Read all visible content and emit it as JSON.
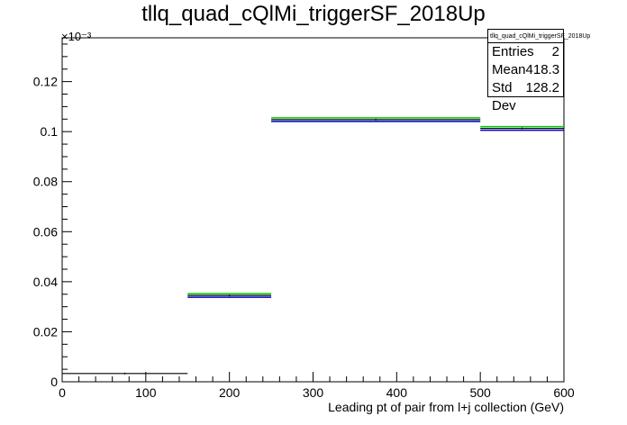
{
  "chart_data": {
    "type": "bar",
    "title": "tllq_quad_cQlMi_triggerSF_2018Up",
    "xlabel": "Leading pt of pair from l+j collection (GeV)",
    "ylabel": "",
    "y_exponent_label": "×10⁻³",
    "xlim": [
      0,
      600
    ],
    "ylim": [
      0,
      0.1375
    ],
    "x_ticks": [
      "0",
      "100",
      "200",
      "300",
      "400",
      "500",
      "600"
    ],
    "y_ticks": [
      "0",
      "0.02",
      "0.04",
      "0.06",
      "0.08",
      "0.1",
      "0.12"
    ],
    "bins": [
      {
        "low": 0,
        "high": 150,
        "value": 0.0033
      },
      {
        "low": 150,
        "high": 250,
        "value": 0.0345
      },
      {
        "low": 250,
        "high": 500,
        "value": 0.1048
      },
      {
        "low": 500,
        "high": 600,
        "value": 0.1013
      }
    ],
    "stats_box": {
      "name": "tllq_quad_cQlMi_triggerSF_2018Up",
      "rows": [
        {
          "label": "Entries",
          "value": "2"
        },
        {
          "label": "Mean",
          "value": "418.3"
        },
        {
          "label": "Std Dev",
          "value": "128.2"
        }
      ]
    },
    "colors": {
      "main": "#000000",
      "up": "#00cc00",
      "down": "#0000cc"
    },
    "grid": false
  }
}
